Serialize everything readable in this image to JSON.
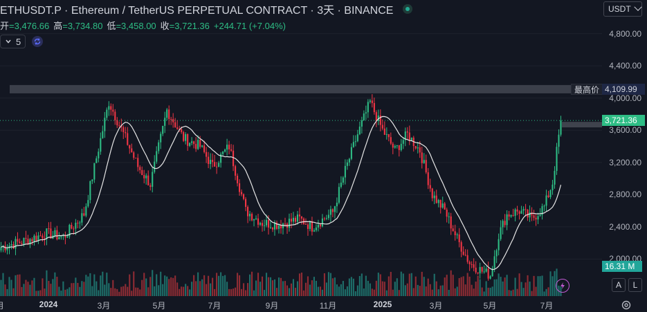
{
  "header": {
    "title": "ETHUSDT.P · Ethereum / TetherUS PERPETUAL CONTRACT · 3天 · BINANCE",
    "ohlc": [
      {
        "label": "开",
        "value": "=3,476.66"
      },
      {
        "label": "高",
        "value": "=3,734.80"
      },
      {
        "label": "低",
        "value": "=3,458.00"
      },
      {
        "label": "收",
        "value": "=3,721.36"
      },
      {
        "label": "",
        "value": "+244.71 (+7.04%)"
      }
    ],
    "indicator_value": "5"
  },
  "currency": "USDT",
  "price_axis": [
    "4,800.00",
    "4,400.00",
    "4,000.00",
    "3,600.00",
    "3,200.00",
    "2,800.00",
    "2,400.00",
    "2,000.00"
  ],
  "time_axis": [
    {
      "label": "月",
      "x_index": 0,
      "bold": false
    },
    {
      "label": "2024",
      "x_index": 1,
      "bold": true
    },
    {
      "label": "3月",
      "x_index": 2,
      "bold": false
    },
    {
      "label": "5月",
      "x_index": 3,
      "bold": false
    },
    {
      "label": "7月",
      "x_index": 4,
      "bold": false
    },
    {
      "label": "9月",
      "x_index": 5,
      "bold": false
    },
    {
      "label": "11月",
      "x_index": 6,
      "bold": false
    },
    {
      "label": "2025",
      "x_index": 7,
      "bold": true
    },
    {
      "label": "3月",
      "x_index": 8,
      "bold": false
    },
    {
      "label": "5月",
      "x_index": 9,
      "bold": false
    },
    {
      "label": "7月",
      "x_index": 10,
      "bold": false
    }
  ],
  "tags": {
    "ath_label": "最高价",
    "ath_value": "4,109.99",
    "last_price": "3,721.36",
    "volume": "16.31 M"
  },
  "buttons": {
    "auto": "A",
    "log": "L"
  },
  "colors": {
    "up": "#2ebd85",
    "down": "#f23645",
    "ma": "#e6e6e6",
    "blue": "#2962ff",
    "vol_up": "#1e6f6a",
    "vol_down": "#8f2c34"
  },
  "chart_data": {
    "type": "candlestick",
    "timeframe": "3天",
    "symbol": "ETHUSDT.P",
    "y_range": [
      1540,
      4960
    ],
    "all_time_high": 4109.99,
    "last": 3721.36,
    "ma_length": 5,
    "keypoints": [
      {
        "t": 0,
        "p": 2150
      },
      {
        "t": 12,
        "p": 2230
      },
      {
        "t": 22,
        "p": 2320
      },
      {
        "t": 30,
        "p": 2270
      },
      {
        "t": 40,
        "p": 2560
      },
      {
        "t": 52,
        "p": 3950
      },
      {
        "t": 60,
        "p": 3500
      },
      {
        "t": 66,
        "p": 3150
      },
      {
        "t": 72,
        "p": 2930
      },
      {
        "t": 80,
        "p": 3850
      },
      {
        "t": 88,
        "p": 3500
      },
      {
        "t": 96,
        "p": 3400
      },
      {
        "t": 102,
        "p": 3150
      },
      {
        "t": 110,
        "p": 3400
      },
      {
        "t": 118,
        "p": 2600
      },
      {
        "t": 126,
        "p": 2450
      },
      {
        "t": 134,
        "p": 2430
      },
      {
        "t": 144,
        "p": 2500
      },
      {
        "t": 150,
        "p": 2400
      },
      {
        "t": 160,
        "p": 2580
      },
      {
        "t": 166,
        "p": 3100
      },
      {
        "t": 172,
        "p": 3550
      },
      {
        "t": 178,
        "p": 3950
      },
      {
        "t": 184,
        "p": 3600
      },
      {
        "t": 190,
        "p": 3350
      },
      {
        "t": 196,
        "p": 3550
      },
      {
        "t": 202,
        "p": 3350
      },
      {
        "t": 208,
        "p": 2800
      },
      {
        "t": 214,
        "p": 2600
      },
      {
        "t": 220,
        "p": 2250
      },
      {
        "t": 226,
        "p": 1950
      },
      {
        "t": 232,
        "p": 1850
      },
      {
        "t": 236,
        "p": 1800
      },
      {
        "t": 240,
        "p": 2300
      },
      {
        "t": 244,
        "p": 2550
      },
      {
        "t": 250,
        "p": 2600
      },
      {
        "t": 256,
        "p": 2500
      },
      {
        "t": 262,
        "p": 2650
      },
      {
        "t": 266,
        "p": 2950
      },
      {
        "t": 270,
        "p": 3721
      }
    ]
  }
}
